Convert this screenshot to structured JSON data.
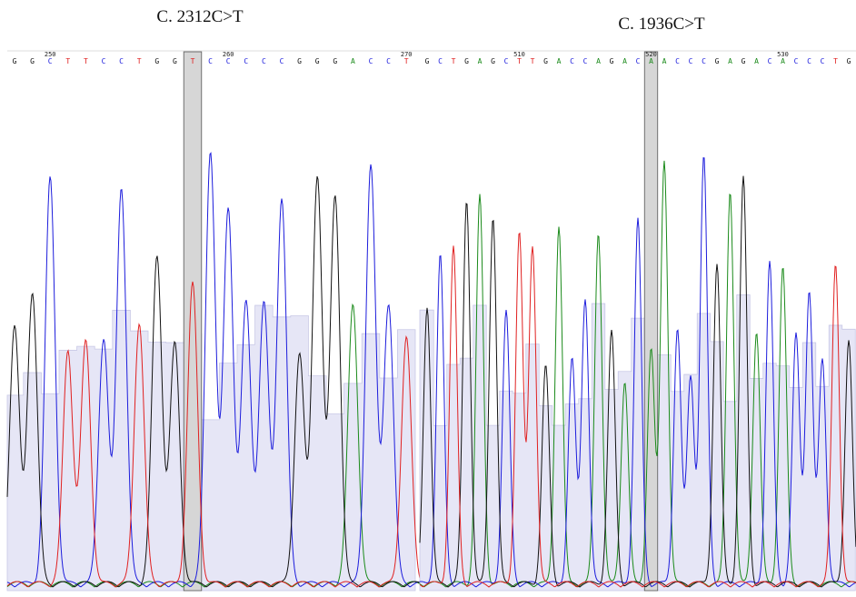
{
  "panels": [
    {
      "title": "C. 2312C>T",
      "bases": [
        "G",
        "G",
        "C",
        "T",
        "T",
        "C",
        "C",
        "T",
        "G",
        "G",
        "T",
        "C",
        "C",
        "C",
        "C",
        "C",
        "G",
        "G",
        "G",
        "A",
        "C",
        "C",
        "T"
      ],
      "positions": [
        "250",
        "260",
        "270"
      ]
    },
    {
      "title": "C. 1936C>T",
      "bases": [
        "G",
        "C",
        "T",
        "G",
        "A",
        "G",
        "C",
        "T",
        "T",
        "G",
        "A",
        "C",
        "C",
        "A",
        "G",
        "A",
        "C",
        "A",
        "A",
        "C",
        "C",
        "C",
        "G",
        "A",
        "G",
        "A",
        "C",
        "A",
        "C",
        "C",
        "C",
        "T",
        "G"
      ],
      "positions": [
        "510",
        "520",
        "530"
      ]
    }
  ]
}
